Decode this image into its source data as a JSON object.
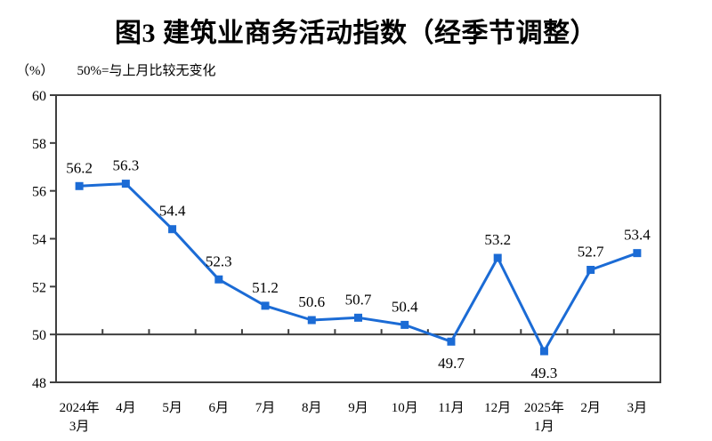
{
  "title": "图3  建筑业商务活动指数（经季节调整）",
  "subtitle": {
    "unit": "（%）",
    "note": "50%=与上月比较无变化"
  },
  "chart_data": {
    "type": "line",
    "series_name": "建筑业商务活动指数（经季节调整）",
    "categories": [
      "2024年\n3月",
      "4月",
      "5月",
      "6月",
      "7月",
      "8月",
      "9月",
      "10月",
      "11月",
      "12月",
      "2025年\n1月",
      "2月",
      "3月"
    ],
    "values": [
      56.2,
      56.3,
      54.4,
      52.3,
      51.2,
      50.6,
      50.7,
      50.4,
      49.7,
      53.2,
      49.3,
      52.7,
      53.4
    ],
    "value_label_positions": [
      "above",
      "above",
      "above",
      "above",
      "above",
      "above",
      "above",
      "above",
      "below",
      "above",
      "below",
      "above",
      "above"
    ],
    "ylabel": "（%）",
    "ylim": [
      48,
      60
    ],
    "ytick_step": 2,
    "yticks": [
      48,
      50,
      52,
      54,
      56,
      58,
      60
    ],
    "baseline": 50,
    "grid": false,
    "legend": "none",
    "line_color": "#1B6BD5",
    "frame_color": "#3F3F3F",
    "text_color": "#000000",
    "marker": "square"
  }
}
